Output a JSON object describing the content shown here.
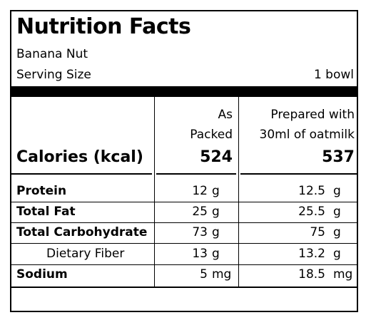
{
  "title": "Nutrition Facts",
  "product": "Banana Nut",
  "serving": {
    "label": "Serving Size",
    "value": "1 bowl"
  },
  "columns": {
    "packed_line1": "As",
    "packed_line2": "Packed",
    "prepared_line1": "Prepared with",
    "prepared_line2": "30ml of oatmilk"
  },
  "calories": {
    "label": "Calories (kcal)",
    "packed": "524",
    "prepared": "537"
  },
  "nutrients": [
    {
      "name": "Protein",
      "packed_value": "12",
      "packed_unit": "g",
      "prepared_value": "12.5",
      "prepared_unit": "g"
    },
    {
      "name": "Total Fat",
      "packed_value": "25",
      "packed_unit": "g",
      "prepared_value": "25.5",
      "prepared_unit": "g"
    },
    {
      "name": "Total Carbohydrate",
      "packed_value": "73",
      "packed_unit": "g",
      "prepared_value": "75",
      "prepared_unit": "g"
    },
    {
      "name": "Dietary Fiber",
      "packed_value": "13",
      "packed_unit": "g",
      "prepared_value": "13.2",
      "prepared_unit": "g"
    },
    {
      "name": "Sodium",
      "packed_value": "5",
      "packed_unit": "mg",
      "prepared_value": "18.5",
      "prepared_unit": "mg"
    }
  ]
}
